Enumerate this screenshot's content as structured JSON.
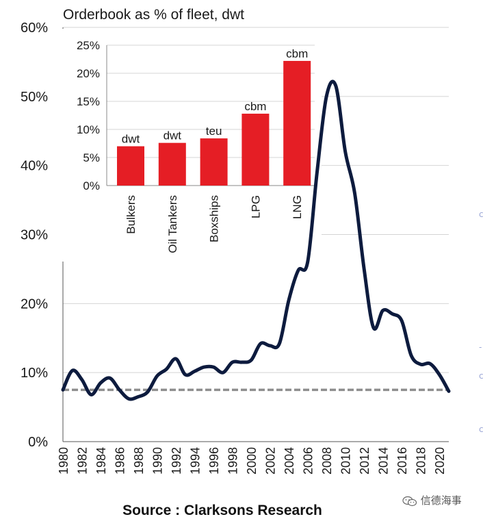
{
  "chart_data": [
    {
      "type": "line",
      "title": "",
      "xlabel": "",
      "ylabel": "",
      "ylim": [
        0,
        60
      ],
      "y_ticks": [
        "0%",
        "10%",
        "20%",
        "30%",
        "40%",
        "50%",
        "60%"
      ],
      "x_ticks": [
        "1980",
        "1982",
        "1984",
        "1986",
        "1988",
        "1990",
        "1992",
        "1994",
        "1996",
        "1998",
        "2000",
        "2002",
        "2004",
        "2006",
        "2008",
        "2010",
        "2012",
        "2014",
        "2016",
        "2018",
        "2020"
      ],
      "grid": true,
      "reference_line": 7.5,
      "series": [
        {
          "x": [
            1980,
            1981,
            1982,
            1983,
            1984,
            1985,
            1986,
            1987,
            1988,
            1989,
            1990,
            1991,
            1992,
            1993,
            1994,
            1995,
            1996,
            1997,
            1998,
            1999,
            2000,
            2001,
            2002,
            2003,
            2004,
            2005,
            2006,
            2007,
            2008,
            2009,
            2010,
            2011,
            2012,
            2013,
            2014,
            2015,
            2016,
            2017,
            2018,
            2019,
            2020,
            2021
          ],
          "y": [
            7.5,
            10.3,
            9.0,
            6.8,
            8.5,
            9.2,
            7.5,
            6.2,
            6.5,
            7.2,
            9.5,
            10.5,
            12.0,
            9.7,
            10.2,
            10.8,
            10.8,
            10.0,
            11.5,
            11.5,
            11.8,
            14.2,
            13.9,
            14.2,
            20.5,
            24.8,
            26.0,
            39.0,
            50.0,
            51.5,
            42.0,
            36.0,
            25.0,
            16.5,
            19.0,
            18.5,
            17.5,
            12.5,
            11.2,
            11.3,
            9.7,
            7.3
          ]
        }
      ]
    },
    {
      "type": "bar",
      "title": "Orderbook as % of fleet, dwt",
      "categories": [
        "Bulkers",
        "Oil Tankers",
        "Boxships",
        "LPG",
        "LNG"
      ],
      "values": [
        7.0,
        7.6,
        8.4,
        12.8,
        22.2
      ],
      "data_labels": [
        "dwt",
        "dwt",
        "teu",
        "cbm",
        "cbm"
      ],
      "ylim": [
        0,
        25
      ],
      "y_ticks": [
        "0%",
        "5%",
        "10%",
        "15%",
        "20%",
        "25%"
      ],
      "grid": true,
      "color": "#e51e25"
    }
  ],
  "colors": {
    "line": "#0d1b3e",
    "reference": "#8e8e8e",
    "bar": "#e51e25",
    "grid": "#d4d4d4"
  },
  "source": "Source : Clarksons Research",
  "watermark": "信德海事",
  "watermark_icon": "wechat-icon"
}
